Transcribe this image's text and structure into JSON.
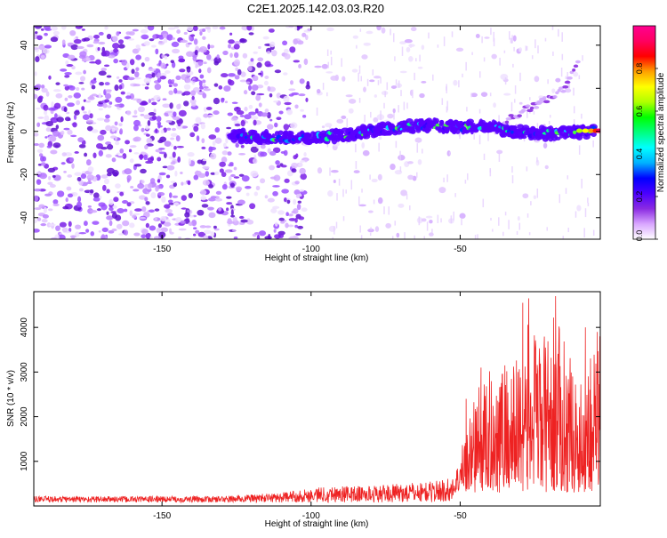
{
  "title": "C2E1.2025.142.03.03.R20",
  "chart_data": [
    {
      "type": "heatmap",
      "xlabel": "Height of straight line (km)",
      "ylabel": "Frequency (Hz)",
      "xlim": [
        -193,
        -3
      ],
      "ylim": [
        -50,
        49
      ],
      "xticks": [
        -150,
        -100,
        -50
      ],
      "yticks": [
        -40,
        -20,
        0,
        20,
        40
      ],
      "grid": false,
      "colorbar": {
        "label": "Normalized spectral amplitude",
        "range": [
          0,
          1
        ],
        "ticks": [
          "0.0",
          "0.2",
          "0.4",
          "0.6",
          "0.8"
        ],
        "colors": [
          "#ffffff",
          "#d9a6ff",
          "#8a2be2",
          "#4b00ff",
          "#0000ff",
          "#00b0ff",
          "#00ffff",
          "#00ff80",
          "#00ff00",
          "#b0ff00",
          "#ffff00",
          "#ffa000",
          "#ff0000",
          "#ff0060",
          "#ff0090"
        ]
      },
      "trace": [
        {
          "x": -127,
          "y": -2
        },
        {
          "x": -110,
          "y": -3
        },
        {
          "x": -100,
          "y": -3
        },
        {
          "x": -85,
          "y": -1
        },
        {
          "x": -70,
          "y": 2
        },
        {
          "x": -60,
          "y": 3
        },
        {
          "x": -50,
          "y": 2
        },
        {
          "x": -40,
          "y": 3
        },
        {
          "x": -35,
          "y": 0
        },
        {
          "x": -20,
          "y": -1
        },
        {
          "x": -5,
          "y": 0
        }
      ],
      "branch": [
        {
          "x": -35,
          "y": 5
        },
        {
          "x": -25,
          "y": 12
        },
        {
          "x": -15,
          "y": 20
        },
        {
          "x": -10,
          "y": 33
        }
      ]
    },
    {
      "type": "line",
      "xlabel": "Height of straight line (km)",
      "ylabel": "SNR (10 * v/v)",
      "xlim": [
        -193,
        -3
      ],
      "ylim": [
        0,
        4800
      ],
      "xticks": [
        -150,
        -100,
        -50
      ],
      "yticks": [
        1000,
        2000,
        3000,
        4000
      ],
      "grid": false,
      "series": [
        {
          "color": "#ee2222",
          "envelope": [
            {
              "x": -193,
              "y": 220
            },
            {
              "x": -130,
              "y": 220
            },
            {
              "x": -110,
              "y": 300
            },
            {
              "x": -95,
              "y": 450
            },
            {
              "x": -80,
              "y": 450
            },
            {
              "x": -60,
              "y": 550
            },
            {
              "x": -52,
              "y": 650
            },
            {
              "x": -45,
              "y": 2600
            },
            {
              "x": -38,
              "y": 3200
            },
            {
              "x": -32,
              "y": 3300
            },
            {
              "x": -28,
              "y": 4100
            },
            {
              "x": -22,
              "y": 3800
            },
            {
              "x": -18,
              "y": 4300
            },
            {
              "x": -14,
              "y": 3600
            },
            {
              "x": -10,
              "y": 2600
            },
            {
              "x": -6,
              "y": 3800
            },
            {
              "x": -3,
              "y": 3900
            }
          ],
          "peaks": [
            {
              "x": -48,
              "y": 2400
            },
            {
              "x": -43,
              "y": 3100
            },
            {
              "x": -35,
              "y": 3150
            },
            {
              "x": -29,
              "y": 4550
            },
            {
              "x": -27,
              "y": 4650
            },
            {
              "x": -18,
              "y": 4700
            },
            {
              "x": -8,
              "y": 4000
            },
            {
              "x": -4,
              "y": 3900
            }
          ]
        }
      ]
    }
  ]
}
